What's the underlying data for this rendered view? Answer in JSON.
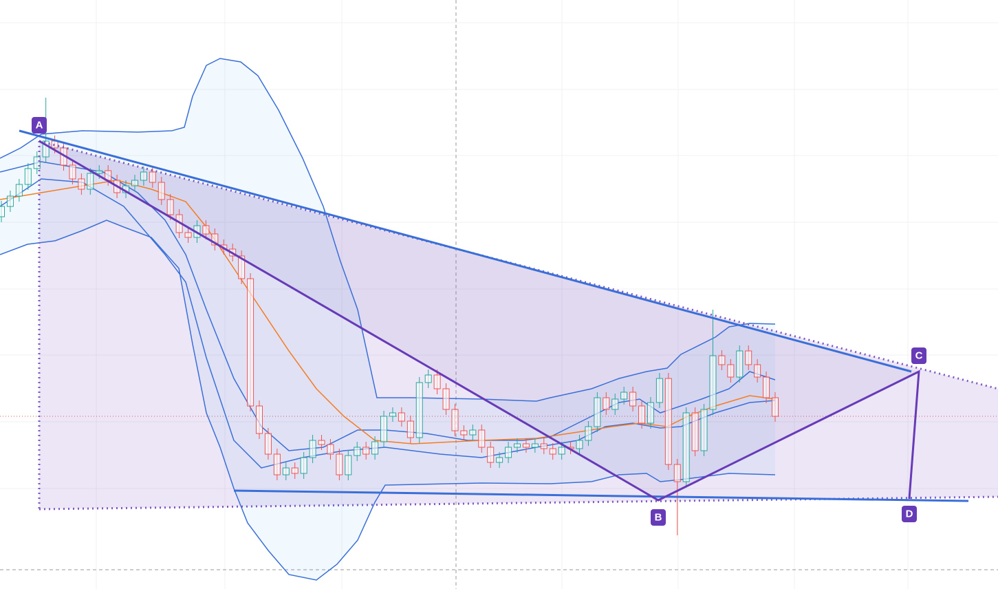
{
  "chart_data": {
    "type": "candlestick",
    "open": [
      541,
      556,
      571,
      588,
      611,
      628,
      651,
      641,
      616,
      596,
      581,
      604,
      608,
      594,
      576,
      586,
      594,
      606,
      591,
      566,
      544,
      518,
      511,
      528,
      516,
      500,
      494,
      484,
      451,
      266,
      226,
      196,
      166,
      176,
      168,
      191,
      216,
      210,
      196,
      166,
      194,
      206,
      196,
      214,
      251,
      256,
      244,
      220,
      300,
      311,
      291,
      261,
      230,
      224,
      231,
      206,
      184,
      191,
      206,
      211,
      206,
      211,
      204,
      196,
      206,
      204,
      216,
      236,
      278,
      261,
      276,
      286,
      266,
      241,
      271,
      306,
      181,
      156,
      256,
      201,
      261,
      339,
      326,
      308,
      346,
      326,
      308,
      278
    ],
    "high": [
      564,
      579,
      596,
      619,
      636,
      714,
      659,
      649,
      624,
      604,
      612,
      616,
      616,
      602,
      594,
      602,
      614,
      614,
      599,
      574,
      552,
      526,
      536,
      536,
      524,
      508,
      502,
      492,
      459,
      274,
      234,
      204,
      184,
      184,
      199,
      224,
      224,
      218,
      204,
      202,
      214,
      214,
      222,
      259,
      264,
      264,
      252,
      308,
      319,
      319,
      299,
      269,
      238,
      239,
      239,
      214,
      199,
      214,
      219,
      219,
      219,
      219,
      212,
      214,
      214,
      224,
      244,
      286,
      286,
      284,
      294,
      294,
      274,
      279,
      314,
      314,
      189,
      264,
      264,
      269,
      406,
      347,
      334,
      354,
      354,
      334,
      316,
      286
    ],
    "low": [
      533,
      548,
      563,
      580,
      603,
      620,
      633,
      608,
      588,
      573,
      573,
      596,
      586,
      568,
      568,
      578,
      586,
      583,
      558,
      536,
      510,
      503,
      503,
      508,
      492,
      486,
      476,
      443,
      258,
      218,
      188,
      158,
      158,
      160,
      160,
      183,
      202,
      188,
      158,
      158,
      186,
      188,
      188,
      206,
      243,
      236,
      212,
      212,
      292,
      283,
      253,
      222,
      216,
      216,
      198,
      176,
      176,
      183,
      198,
      198,
      198,
      196,
      188,
      188,
      196,
      196,
      208,
      228,
      253,
      253,
      268,
      258,
      233,
      233,
      263,
      173,
      78,
      148,
      193,
      193,
      253,
      318,
      300,
      300,
      318,
      300,
      270,
      243
    ],
    "close": [
      556,
      571,
      588,
      611,
      628,
      651,
      641,
      616,
      596,
      581,
      604,
      608,
      594,
      576,
      586,
      594,
      606,
      591,
      566,
      544,
      518,
      511,
      528,
      516,
      500,
      494,
      484,
      451,
      266,
      226,
      196,
      166,
      176,
      168,
      191,
      216,
      210,
      196,
      166,
      194,
      206,
      196,
      214,
      251,
      256,
      244,
      220,
      300,
      311,
      291,
      261,
      230,
      224,
      231,
      206,
      184,
      191,
      206,
      211,
      206,
      211,
      204,
      196,
      206,
      204,
      216,
      236,
      278,
      261,
      276,
      286,
      266,
      241,
      271,
      306,
      181,
      156,
      256,
      201,
      261,
      339,
      326,
      308,
      346,
      326,
      308,
      278,
      251
    ],
    "ylim": [
      0,
      856
    ],
    "colors": {
      "up": "#26a69a",
      "down": "#ef5350"
    }
  },
  "points": [
    "A",
    "B",
    "C",
    "D"
  ]
}
